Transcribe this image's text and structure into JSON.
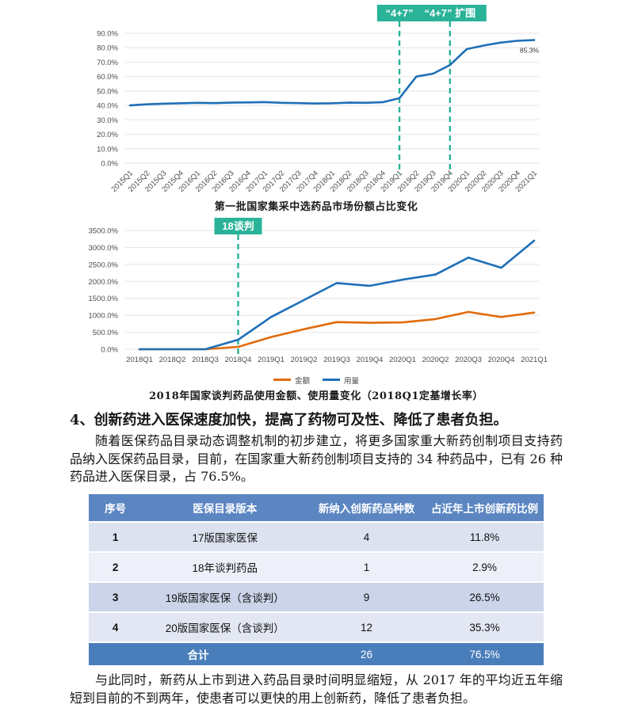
{
  "document": {
    "section_heading": "4、创新药进入医保速度加快，提高了药物可及性、降低了患者负担。",
    "paragraph_1": "随着医保药品目录动态调整机制的初步建立，将更多国家重大新药创制项目支持药品纳入医保药品目录，目前，在国家重大新药创制项目支持的 34 种药品中，已有 26 种药品进入医保目录，占 76.5%。",
    "paragraph_2": "与此同时，新药从上市到进入药品目录时间明显缩短，从 2017 年的平均近五年缩短到目前的不到两年，使患者可以更快的用上创新药，降低了患者负担。"
  },
  "chart_data": [
    {
      "type": "line",
      "title": "第一批国家集采中选药品市场份额占比变化",
      "categories": [
        "2015Q1",
        "2015Q2",
        "2015Q3",
        "2015Q4",
        "2016Q1",
        "2016Q2",
        "2016Q3",
        "2016Q4",
        "2017Q1",
        "2017Q2",
        "2017Q3",
        "2017Q4",
        "2018Q1",
        "2018Q2",
        "2018Q3",
        "2018Q4",
        "2019Q1",
        "2019Q2",
        "2019Q3",
        "2019Q4",
        "2020Q1",
        "2020Q2",
        "2020Q3",
        "2020Q4",
        "2021Q1"
      ],
      "values": [
        40.0,
        40.8,
        41.2,
        41.5,
        41.8,
        41.6,
        41.9,
        42.1,
        42.3,
        41.8,
        41.6,
        41.3,
        41.5,
        41.9,
        41.8,
        42.2,
        45.0,
        60.0,
        62.0,
        68.0,
        79.0,
        81.5,
        83.5,
        84.8,
        85.3
      ],
      "line_color": "#1e6fb8",
      "ylim": [
        0,
        90
      ],
      "ytick_step": 10,
      "ytick_format": "percent",
      "grid": "horizontal",
      "legend": "none",
      "accent_color": "#2ab398",
      "annotations": [
        {
          "label": "“4+7”",
          "x": "2019Q1"
        },
        {
          "label": "“4+7” 扩围",
          "x": "2019Q4"
        }
      ],
      "end_label": "85.3%"
    },
    {
      "type": "line",
      "title": "2018年国家谈判药品使用金额、使用量变化（2018Q1定基增长率）",
      "categories": [
        "2018Q1",
        "2018Q2",
        "2018Q3",
        "2018Q4",
        "2019Q1",
        "2019Q2",
        "2019Q3",
        "2019Q4",
        "2020Q1",
        "2020Q2",
        "2020Q3",
        "2020Q4",
        "2021Q1"
      ],
      "series": [
        {
          "name": "金额",
          "color": "#e26b0a",
          "values": [
            0,
            0,
            0,
            70,
            360,
            590,
            800,
            780,
            790,
            890,
            1100,
            950,
            1080
          ]
        },
        {
          "name": "用量",
          "color": "#1e6fb8",
          "values": [
            0,
            0,
            0,
            280,
            950,
            1450,
            1950,
            1870,
            2050,
            2200,
            2700,
            2400,
            3200
          ]
        }
      ],
      "ylim": [
        0,
        3500
      ],
      "ytick_step": 500,
      "ytick_format": "percent",
      "grid": "horizontal",
      "legend_position": "bottom",
      "accent_color": "#2ab398",
      "annotations": [
        {
          "label": "18谈判",
          "x": "2018Q4"
        }
      ]
    }
  ],
  "table": {
    "headers": [
      "序号",
      "医保目录版本",
      "新纳入创新药品种数",
      "占近年上市创新药比例"
    ],
    "rows": [
      [
        "1",
        "17版国家医保",
        "4",
        "11.8%"
      ],
      [
        "2",
        "18年谈判药品",
        "1",
        "2.9%"
      ],
      [
        "3",
        "19版国家医保（含谈判）",
        "9",
        "26.5%"
      ],
      [
        "4",
        "20版国家医保（含谈判）",
        "12",
        "35.3%"
      ]
    ],
    "footer": [
      "合计",
      "26",
      "76.5%"
    ],
    "header_color": "#5b86c2",
    "footer_color": "#4a7ebb"
  }
}
